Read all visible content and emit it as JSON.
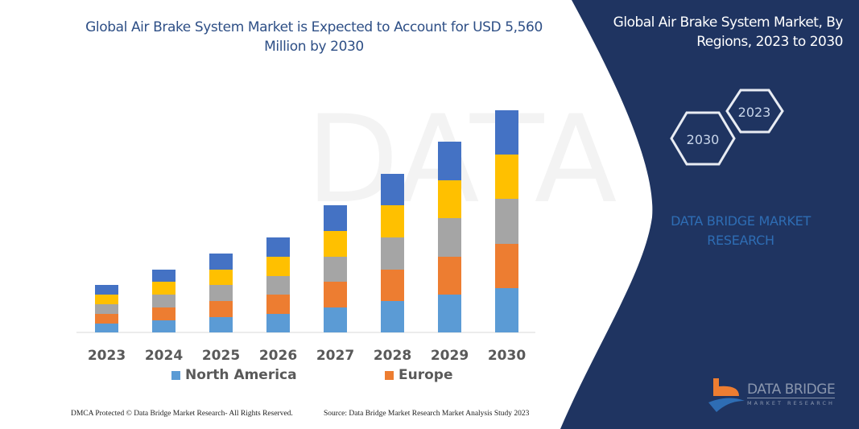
{
  "chart_data": {
    "type": "bar",
    "stacked": true,
    "title": "Global Air Brake System Market is Expected to Account for USD 5,560 Million by 2030",
    "categories": [
      "2023",
      "2024",
      "2025",
      "2026",
      "2027",
      "2028",
      "2029",
      "2030"
    ],
    "series": [
      {
        "name": "North America",
        "color": "#5B9BD5",
        "values": [
          11,
          15,
          19,
          23,
          31,
          39,
          47,
          55
        ]
      },
      {
        "name": "Europe",
        "color": "#ED7D31",
        "values": [
          12,
          16,
          20,
          24,
          32,
          39,
          47,
          55
        ]
      },
      {
        "color": "#A5A5A5",
        "values": [
          12,
          16,
          20,
          23,
          31,
          40,
          48,
          56
        ]
      },
      {
        "color": "#FFC000",
        "values": [
          12,
          16,
          19,
          24,
          32,
          40,
          47,
          55
        ]
      },
      {
        "color": "#4472C4",
        "values": [
          12,
          15,
          20,
          24,
          32,
          39,
          48,
          55
        ]
      }
    ],
    "value_note_hidden": null,
    "ylim": [
      0,
      280
    ],
    "y_axis_visible": false,
    "grid": false,
    "legend_position": "bottom",
    "xlabel": "",
    "ylabel": ""
  },
  "footer": {
    "copyright": "DMCA Protected © Data Bridge Market Research-  All Rights Reserved.",
    "source": "Source:  Data Bridge Market Research  Market Analysis Study 2023"
  },
  "panel": {
    "title": "Global Air Brake System Market, By Regions, 2023 to 2030",
    "hex_start": "2023",
    "hex_end": "2030",
    "brand": "DATA BRIDGE MARKET RESEARCH",
    "logo_name": "DATA BRIDGE",
    "logo_sub": "MARKET RESEARCH",
    "bg_color": "#1F3461"
  }
}
